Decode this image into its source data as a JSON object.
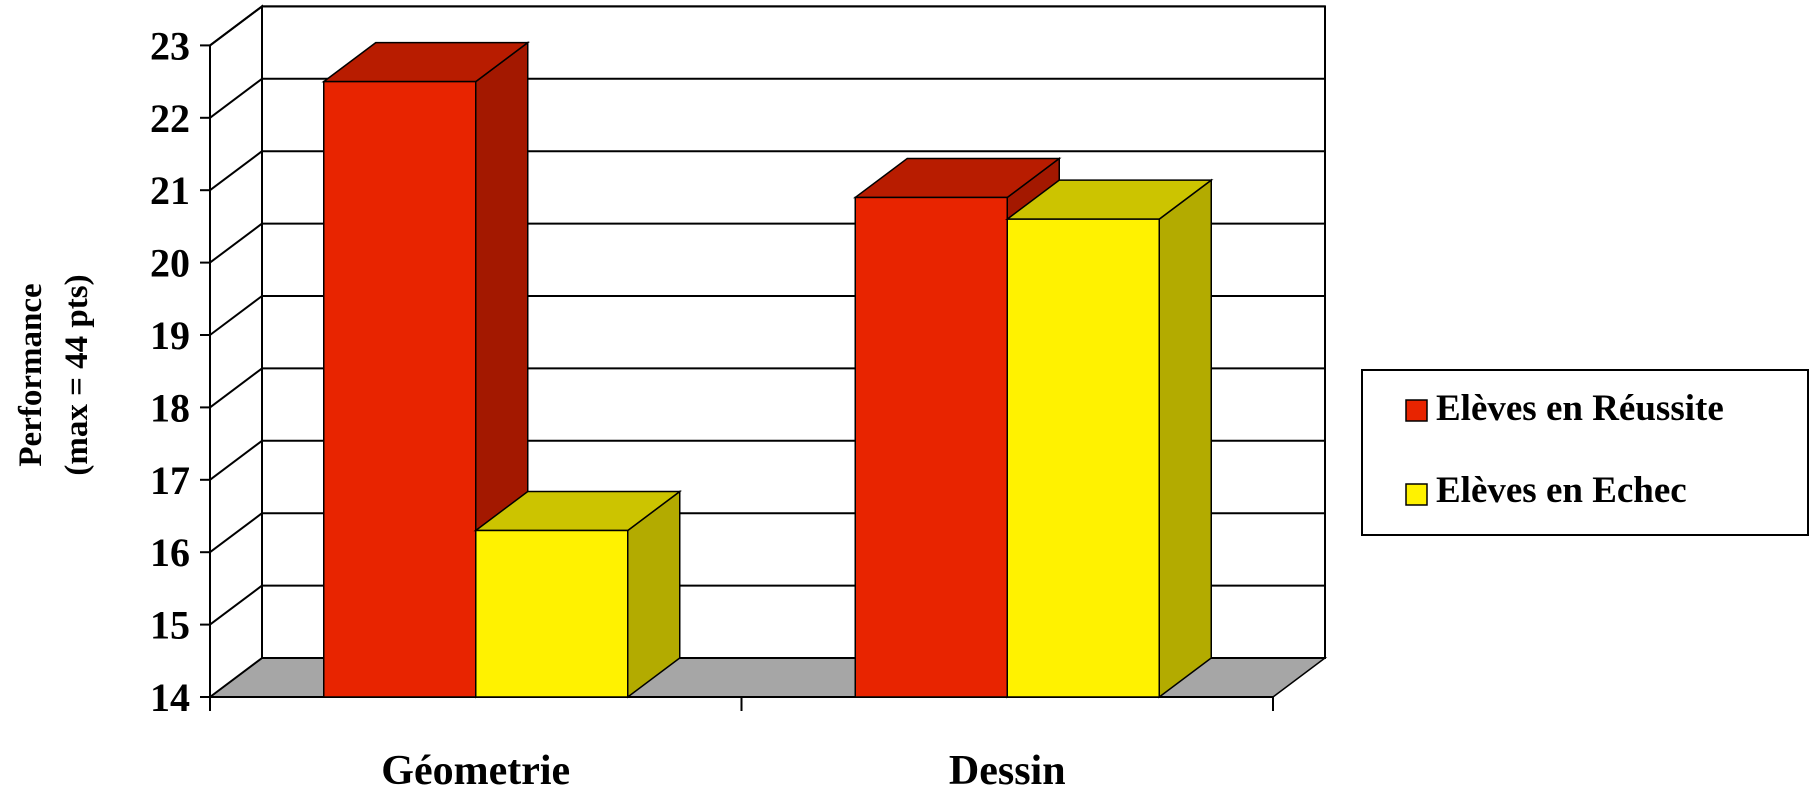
{
  "chart_data": {
    "type": "bar",
    "style": "3d-clustered",
    "title": "",
    "ylabel_lines": [
      "Performance",
      "(max = 44 pts)"
    ],
    "xlabel": "",
    "categories": [
      "Géometrie",
      "Dessin"
    ],
    "ylim": [
      14,
      23
    ],
    "yticks": [
      "14",
      "15",
      "16",
      "17",
      "18",
      "19",
      "20",
      "21",
      "22",
      "23"
    ],
    "grid": true,
    "legend_position": "right",
    "series": [
      {
        "name": "Elèves en Réussite",
        "values": [
          22.5,
          20.9
        ],
        "color": "#e82400",
        "top_color": "#b81c00",
        "side_color": "#a31800"
      },
      {
        "name": "Elèves en Echec",
        "values": [
          16.3,
          20.6
        ],
        "color": "#fff200",
        "top_color": "#ccc400",
        "side_color": "#b3ab00"
      }
    ],
    "floor_color": "#a6a6a6"
  }
}
